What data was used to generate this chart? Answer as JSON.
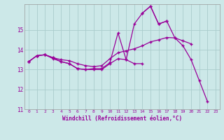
{
  "xlabel": "Windchill (Refroidissement éolien,°C)",
  "background_color": "#cce8e8",
  "grid_color": "#aacccc",
  "line_color": "#990099",
  "hours": [
    0,
    1,
    2,
    3,
    4,
    5,
    6,
    7,
    8,
    9,
    10,
    11,
    12,
    13,
    14,
    15,
    16,
    17,
    18,
    19,
    20,
    21,
    22,
    23
  ],
  "line_top": [
    13.4,
    13.7,
    13.75,
    13.6,
    13.4,
    13.3,
    13.05,
    13.0,
    13.05,
    13.05,
    13.35,
    14.85,
    13.5,
    15.3,
    15.85,
    16.2,
    15.3,
    15.45,
    null,
    null,
    null,
    null,
    null,
    null
  ],
  "line_mid": [
    13.4,
    13.7,
    13.75,
    13.6,
    13.5,
    13.45,
    13.3,
    13.2,
    13.15,
    13.2,
    13.55,
    13.85,
    13.95,
    14.05,
    14.2,
    14.4,
    14.5,
    14.62,
    14.6,
    14.45,
    14.3,
    null,
    null,
    null
  ],
  "line_low": [
    13.4,
    13.7,
    13.75,
    13.55,
    13.4,
    13.3,
    13.05,
    13.0,
    13.0,
    13.0,
    13.3,
    13.55,
    13.5,
    13.3,
    13.3,
    null,
    null,
    null,
    null,
    null,
    null,
    null,
    null,
    null
  ],
  "line_drop": [
    null,
    null,
    null,
    null,
    null,
    null,
    null,
    null,
    null,
    null,
    null,
    null,
    null,
    null,
    15.85,
    16.2,
    15.3,
    15.45,
    14.6,
    14.2,
    13.5,
    12.45,
    11.4,
    null
  ],
  "ylim_min": 11.0,
  "ylim_max": 16.3,
  "yticks": [
    11,
    12,
    13,
    14,
    15
  ]
}
